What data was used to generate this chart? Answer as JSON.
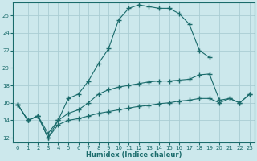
{
  "xlabel": "Humidex (Indice chaleur)",
  "bg_color": "#cce8ec",
  "grid_color": "#aacdd4",
  "line_color": "#1a6b6b",
  "xlim": [
    -0.5,
    23.5
  ],
  "ylim": [
    11.5,
    27.5
  ],
  "xticks": [
    0,
    1,
    2,
    3,
    4,
    5,
    6,
    7,
    8,
    9,
    10,
    11,
    12,
    13,
    14,
    15,
    16,
    17,
    18,
    19,
    20,
    21,
    22,
    23
  ],
  "yticks": [
    12,
    14,
    16,
    18,
    20,
    22,
    24,
    26
  ],
  "line1_x": [
    0,
    1,
    2,
    3,
    4,
    5,
    6,
    7,
    8,
    9,
    10,
    11,
    12,
    13,
    14,
    15,
    16,
    17,
    18,
    19
  ],
  "line1_y": [
    15.8,
    14.0,
    14.5,
    12.0,
    14.0,
    16.5,
    17.0,
    18.5,
    20.5,
    22.2,
    25.5,
    26.8,
    27.2,
    27.0,
    26.8,
    26.8,
    26.2,
    25.0,
    22.0,
    21.2
  ],
  "line2_x": [
    0,
    1,
    2,
    3,
    4,
    5,
    6,
    7,
    8,
    9,
    10,
    11,
    12,
    13,
    14,
    15,
    16,
    17,
    18,
    19,
    20,
    21,
    22,
    23
  ],
  "line2_y": [
    15.8,
    14.0,
    14.5,
    12.5,
    14.0,
    14.8,
    15.2,
    16.0,
    17.0,
    17.5,
    17.8,
    18.0,
    18.2,
    18.4,
    18.5,
    18.5,
    18.6,
    18.7,
    19.2,
    19.3,
    16.3,
    16.5,
    16.0,
    17.0
  ],
  "line3_x": [
    0,
    1,
    2,
    3,
    4,
    5,
    6,
    7,
    8,
    9,
    10,
    11,
    12,
    13,
    14,
    15,
    16,
    17,
    18,
    19,
    20,
    21,
    22,
    23
  ],
  "line3_y": [
    15.8,
    14.0,
    14.5,
    12.0,
    13.5,
    14.0,
    14.2,
    14.5,
    14.8,
    15.0,
    15.2,
    15.4,
    15.6,
    15.7,
    15.9,
    16.0,
    16.2,
    16.3,
    16.5,
    16.5,
    16.0,
    16.5,
    16.0,
    17.0
  ]
}
